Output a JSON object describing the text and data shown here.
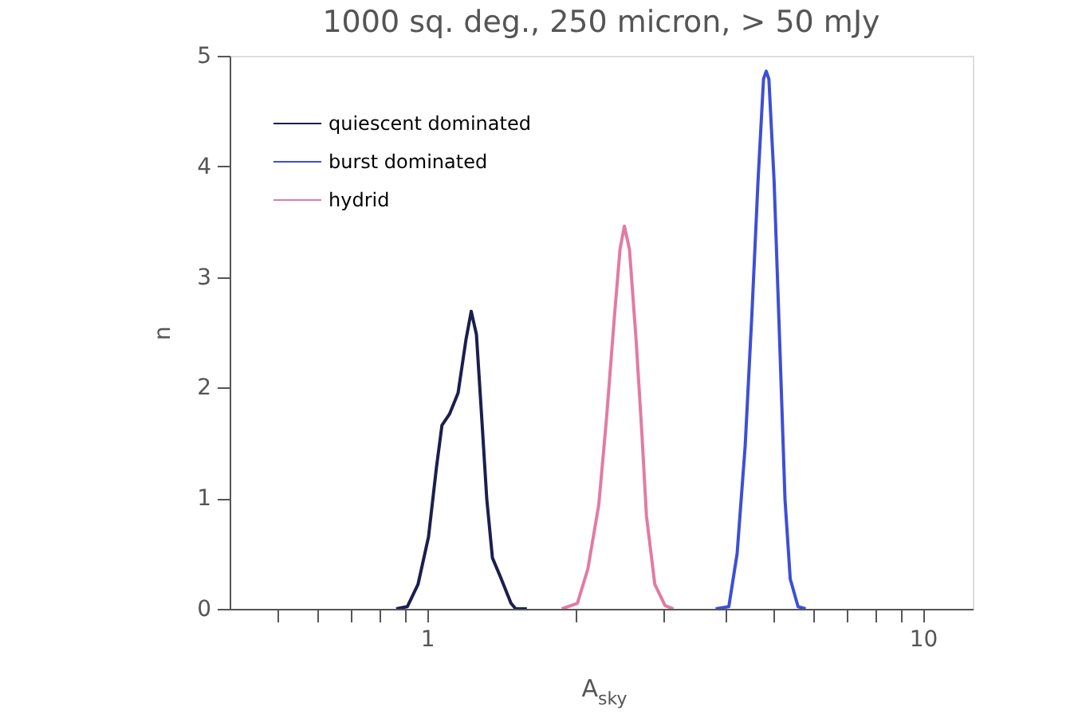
{
  "chart_data": {
    "type": "line",
    "title": "1000 sq. deg., 250 micron, > 50 mJy",
    "xlabel": "A$_{sky}$",
    "ylabel": "n",
    "log": "x",
    "xlim": [
      0.4,
      12.6
    ],
    "ylim": [
      0,
      5
    ],
    "xticks": [
      {
        "value": 0.5,
        "label": null
      },
      {
        "value": 0.6,
        "label": null
      },
      {
        "value": 0.7,
        "label": null
      },
      {
        "value": 0.8,
        "label": null
      },
      {
        "value": 0.9,
        "label": null
      },
      1,
      {
        "value": 2,
        "label": null
      },
      {
        "value": 3,
        "label": null
      },
      {
        "value": 4,
        "label": null
      },
      {
        "value": 5,
        "label": null
      },
      {
        "value": 6,
        "label": null
      },
      {
        "value": 7,
        "label": null
      },
      {
        "value": 8,
        "label": null
      },
      {
        "value": 9,
        "label": null
      },
      10
    ],
    "yticks": [
      0,
      1,
      2,
      3,
      4,
      5
    ],
    "grid": false,
    "legend": "top left",
    "line_style": "solid",
    "marker": "none",
    "series": [
      {
        "name": "quiescent dominated",
        "color": "#1b1f4e",
        "x": [
          0.867,
          0.913,
          0.959,
          1.007,
          1.045,
          1.072,
          1.11,
          1.155,
          1.198,
          1.228,
          1.258,
          1.29,
          1.32,
          1.355,
          1.406,
          1.477,
          1.51,
          1.59
        ],
        "values": [
          0,
          0.02,
          0.22,
          0.65,
          1.28,
          1.66,
          1.76,
          1.95,
          2.43,
          2.69,
          2.48,
          1.71,
          0.99,
          0.46,
          0.29,
          0.05,
          0,
          0
        ]
      },
      {
        "name": "burst dominated",
        "color": "#3d4fd6",
        "x": [
          3.82,
          4.06,
          4.22,
          4.38,
          4.52,
          4.65,
          4.77,
          4.83,
          4.89,
          5.01,
          5.14,
          5.27,
          5.4,
          5.6,
          5.8
        ],
        "values": [
          0,
          0.02,
          0.5,
          1.47,
          2.67,
          3.87,
          4.79,
          4.86,
          4.79,
          3.87,
          2.43,
          0.99,
          0.27,
          0.02,
          0
        ]
      },
      {
        "name": "hydrid",
        "color": "#e27ba3",
        "x": [
          1.87,
          2.01,
          2.11,
          2.22,
          2.3,
          2.39,
          2.45,
          2.5,
          2.56,
          2.64,
          2.71,
          2.77,
          2.88,
          3.02,
          3.14
        ],
        "values": [
          0,
          0.05,
          0.36,
          0.94,
          1.71,
          2.67,
          3.25,
          3.46,
          3.25,
          2.43,
          1.61,
          0.84,
          0.22,
          0.03,
          0
        ]
      }
    ]
  }
}
